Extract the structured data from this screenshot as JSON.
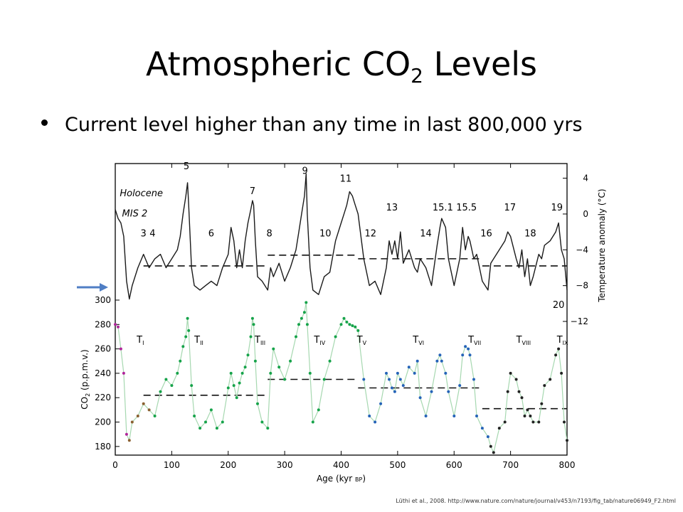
{
  "slide": {
    "title_main": "Atmospheric CO",
    "title_sub": "2",
    "title_tail": " Levels",
    "bullet": "Current level higher than any time in last 800,000 yrs",
    "citation": "Lüthi et al., 2008. http://www.nature.com/nature/journal/v453/n7193/fig_tab/nature06949_F2.html"
  },
  "chart_data": {
    "type": "line",
    "x_axis": {
      "label": "Age (kyr ",
      "label_sub": "BP",
      "label_close": ")",
      "range": [
        0,
        800
      ],
      "ticks": [
        "0",
        "100",
        "200",
        "300",
        "400",
        "500",
        "600",
        "700",
        "800"
      ]
    },
    "co2_axis": {
      "label": "CO",
      "label_sub": "2",
      "label_unit": " (p.p.m.v.)",
      "range": [
        170,
        300
      ],
      "ticks": [
        "180",
        "200",
        "220",
        "240",
        "260",
        "280",
        "300"
      ]
    },
    "temp_axis": {
      "label": "Temperature anomaly (°C)",
      "range": [
        -12,
        5
      ],
      "ticks": [
        "4",
        "0",
        "−4",
        "−8",
        "−12"
      ]
    },
    "colors": {
      "temperature": "#1a1a1a",
      "co2_holocene": "#b0259a",
      "co2_mis2": "#8a6030",
      "co2_green": "#16a34a",
      "co2_blue": "#2563b8",
      "co2_black": "#222222",
      "co2_red": "#d62828",
      "line_light": "#a6d8b0",
      "arrow": "#4f7ec4"
    },
    "temperature_series": {
      "name": "Temperature anomaly",
      "x": [
        0,
        5,
        10,
        15,
        20,
        25,
        30,
        40,
        50,
        60,
        70,
        80,
        90,
        100,
        110,
        115,
        120,
        125,
        128,
        130,
        135,
        140,
        150,
        160,
        170,
        180,
        190,
        200,
        205,
        210,
        215,
        220,
        225,
        230,
        235,
        240,
        243,
        245,
        248,
        252,
        260,
        270,
        275,
        280,
        290,
        300,
        310,
        320,
        325,
        330,
        335,
        338,
        340,
        345,
        350,
        360,
        370,
        380,
        390,
        400,
        405,
        410,
        415,
        420,
        425,
        430,
        440,
        450,
        460,
        470,
        480,
        485,
        490,
        495,
        500,
        505,
        510,
        520,
        530,
        535,
        540,
        550,
        560,
        570,
        575,
        578,
        585,
        590,
        600,
        610,
        615,
        620,
        625,
        628,
        635,
        640,
        650,
        660,
        665,
        670,
        680,
        690,
        695,
        700,
        710,
        715,
        720,
        725,
        730,
        735,
        740,
        750,
        755,
        760,
        770,
        780,
        785,
        790,
        795,
        800
      ],
      "y": [
        0.5,
        -0.5,
        -1,
        -2.5,
        -7.5,
        -9.5,
        -8,
        -6,
        -4.5,
        -6,
        -5,
        -4.5,
        -6,
        -5,
        -4,
        -2.5,
        0,
        2,
        3.5,
        1,
        -6,
        -8,
        -8.5,
        -8,
        -7.5,
        -8,
        -6,
        -4.5,
        -1.5,
        -3,
        -6,
        -4,
        -6,
        -3,
        -1,
        0.5,
        1.5,
        1,
        -3,
        -7,
        -7.5,
        -8.5,
        -6,
        -7,
        -5.5,
        -7.5,
        -6,
        -4,
        -2,
        0,
        2,
        4.5,
        0,
        -6,
        -8.5,
        -9,
        -7,
        -6.5,
        -3,
        -1,
        0,
        1,
        2.5,
        2,
        1,
        0,
        -5,
        -8,
        -7.5,
        -9,
        -6,
        -3,
        -4.5,
        -3,
        -5,
        -2,
        -5.5,
        -4,
        -6,
        -6.5,
        -5,
        -6,
        -8,
        -3.5,
        -1.5,
        -0.5,
        -1.5,
        -5,
        -8,
        -5,
        -1.5,
        -4,
        -2.5,
        -3,
        -5,
        -4.5,
        -7.5,
        -8.5,
        -5.5,
        -5,
        -4,
        -3,
        -2,
        -2.5,
        -5,
        -6,
        -4,
        -7,
        -5,
        -8,
        -7,
        -4.5,
        -5,
        -3.5,
        -3,
        -2,
        -1,
        -4,
        -5,
        -8.5
      ]
    },
    "co2_series": {
      "name": "CO2",
      "x": [
        0,
        5,
        10,
        15,
        20,
        25,
        30,
        40,
        50,
        60,
        70,
        80,
        90,
        100,
        110,
        115,
        120,
        125,
        128,
        130,
        135,
        140,
        150,
        160,
        170,
        180,
        190,
        200,
        205,
        210,
        215,
        220,
        225,
        230,
        235,
        240,
        243,
        245,
        248,
        252,
        260,
        270,
        275,
        280,
        290,
        300,
        310,
        320,
        325,
        330,
        335,
        338,
        340,
        345,
        350,
        360,
        370,
        380,
        390,
        400,
        405,
        410,
        415,
        420,
        425,
        430,
        440,
        450,
        460,
        470,
        480,
        485,
        490,
        495,
        500,
        505,
        510,
        520,
        530,
        535,
        540,
        550,
        560,
        570,
        575,
        578,
        585,
        590,
        600,
        610,
        615,
        620,
        625,
        628,
        635,
        640,
        650,
        660,
        665,
        670,
        680,
        690,
        695,
        700,
        710,
        715,
        720,
        725,
        730,
        735,
        740,
        750,
        755,
        760,
        770,
        780,
        785,
        790,
        795,
        800
      ],
      "y": [
        280,
        278,
        260,
        240,
        190,
        185,
        200,
        205,
        215,
        210,
        205,
        225,
        235,
        230,
        240,
        250,
        262,
        270,
        285,
        275,
        230,
        205,
        195,
        200,
        210,
        195,
        200,
        228,
        240,
        230,
        220,
        232,
        240,
        245,
        255,
        270,
        285,
        280,
        250,
        215,
        200,
        195,
        240,
        260,
        245,
        235,
        250,
        270,
        280,
        285,
        290,
        298,
        280,
        240,
        200,
        210,
        235,
        250,
        270,
        280,
        285,
        282,
        280,
        279,
        278,
        275,
        235,
        205,
        200,
        215,
        240,
        235,
        228,
        225,
        240,
        235,
        230,
        245,
        240,
        250,
        220,
        205,
        225,
        250,
        255,
        250,
        240,
        225,
        205,
        230,
        255,
        262,
        260,
        255,
        235,
        205,
        195,
        188,
        180,
        175,
        195,
        200,
        225,
        240,
        235,
        225,
        220,
        205,
        210,
        205,
        200,
        200,
        215,
        230,
        235,
        255,
        260,
        240,
        200,
        185
      ]
    },
    "dashed_mean_co2": [
      {
        "from": 50,
        "to": 270,
        "value": 222
      },
      {
        "from": 270,
        "to": 430,
        "value": 235
      },
      {
        "from": 430,
        "to": 650,
        "value": 228
      },
      {
        "from": 650,
        "to": 800,
        "value": 211
      }
    ],
    "dashed_mean_temp": [
      {
        "from": 50,
        "to": 270,
        "value": -5.8
      },
      {
        "from": 270,
        "to": 430,
        "value": -4.6
      },
      {
        "from": 430,
        "to": 650,
        "value": -5.0
      },
      {
        "from": 650,
        "to": 800,
        "value": -5.8
      }
    ],
    "stage_labels": [
      {
        "text": "Holocene",
        "x": 8,
        "temp": 2.0,
        "italic": true,
        "anchor": "start"
      },
      {
        "text": "MIS 2",
        "x": 12,
        "temp": -0.3,
        "italic": true,
        "anchor": "start"
      },
      {
        "text": "3",
        "x": 50,
        "temp": -2.5
      },
      {
        "text": "4",
        "x": 66,
        "temp": -2.5
      },
      {
        "text": "5",
        "x": 126,
        "temp": 5.0
      },
      {
        "text": "6",
        "x": 170,
        "temp": -2.5
      },
      {
        "text": "7",
        "x": 243,
        "temp": 2.2
      },
      {
        "text": "8",
        "x": 273,
        "temp": -2.5
      },
      {
        "text": "9",
        "x": 336,
        "temp": 4.5
      },
      {
        "text": "10",
        "x": 372,
        "temp": -2.5
      },
      {
        "text": "11",
        "x": 408,
        "temp": 3.6
      },
      {
        "text": "12",
        "x": 452,
        "temp": -2.5
      },
      {
        "text": "13",
        "x": 490,
        "temp": 0.4
      },
      {
        "text": "14",
        "x": 550,
        "temp": -2.5
      },
      {
        "text": "15.1",
        "x": 580,
        "temp": 0.4
      },
      {
        "text": "15.5",
        "x": 622,
        "temp": 0.4
      },
      {
        "text": "16",
        "x": 657,
        "temp": -2.5
      },
      {
        "text": "17",
        "x": 699,
        "temp": 0.4
      },
      {
        "text": "18",
        "x": 735,
        "temp": -2.5
      },
      {
        "text": "19",
        "x": 782,
        "temp": 0.4
      },
      {
        "text": "20",
        "x": 785,
        "temp": -10.5
      }
    ],
    "termination_labels": [
      {
        "text": "T",
        "sub": "I",
        "x": 38,
        "co2": 265
      },
      {
        "text": "T",
        "sub": "II",
        "x": 140,
        "co2": 265
      },
      {
        "text": "T",
        "sub": "III",
        "x": 247,
        "co2": 265
      },
      {
        "text": "T",
        "sub": "IV",
        "x": 352,
        "co2": 265
      },
      {
        "text": "T",
        "sub": "V",
        "x": 428,
        "co2": 265
      },
      {
        "text": "T",
        "sub": "VI",
        "x": 527,
        "co2": 265
      },
      {
        "text": "T",
        "sub": "VII",
        "x": 625,
        "co2": 265
      },
      {
        "text": "T",
        "sub": "VIII",
        "x": 710,
        "co2": 265
      },
      {
        "text": "T",
        "sub": "IX",
        "x": 782,
        "co2": 265
      }
    ],
    "arrow_marker_co2": 300
  }
}
